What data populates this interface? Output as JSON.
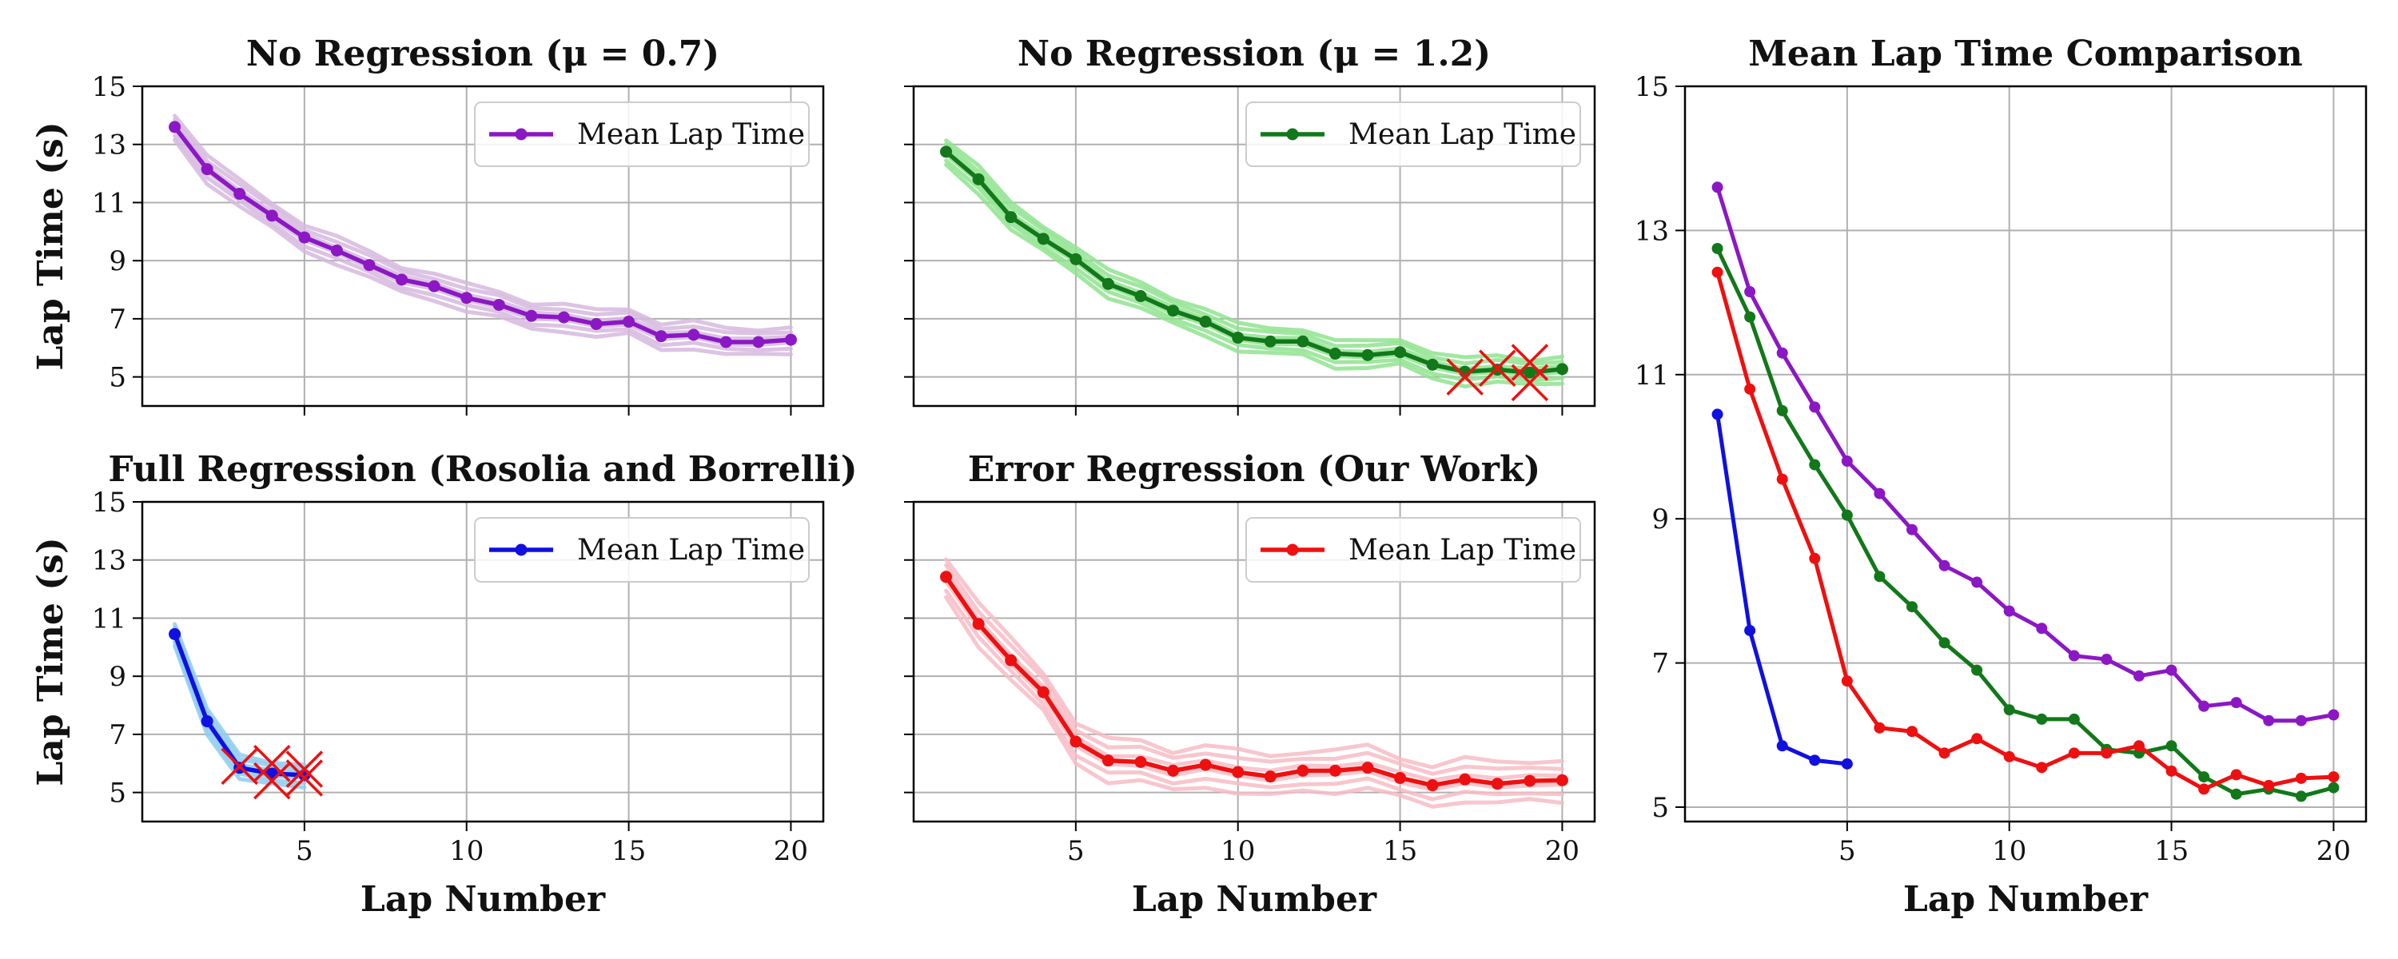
{
  "colors": {
    "purple": "#8b18c4",
    "purple_light": "#d6b8de",
    "green": "#12781a",
    "green_light": "#8fe38f",
    "blue": "#1010e0",
    "blue_light": "#8ecbee",
    "red": "#ee1010",
    "red_light": "#f7bcc6",
    "grid": "#b0b0b0",
    "cross": "#ee1010"
  },
  "chart_data": [
    {
      "id": "p1",
      "type": "line",
      "title": "No Regression (μ = 0.7)",
      "xlabel": "",
      "ylabel": "Lap Time (s)",
      "xlim": [
        0,
        21
      ],
      "ylim": [
        4,
        15
      ],
      "xticks": [
        5,
        10,
        15,
        20
      ],
      "yticks": [
        5,
        7,
        9,
        11,
        13,
        15
      ],
      "show_xticklabels": false,
      "legend": "Mean Lap Time",
      "legend_position": "top-right",
      "color": "purple",
      "band_color": "purple_light",
      "x": [
        1,
        2,
        3,
        4,
        5,
        6,
        7,
        8,
        9,
        10,
        11,
        12,
        13,
        14,
        15,
        16,
        17,
        18,
        19,
        20
      ],
      "values": [
        13.6,
        12.15,
        11.3,
        10.55,
        9.8,
        9.35,
        8.85,
        8.35,
        8.12,
        7.72,
        7.48,
        7.1,
        7.05,
        6.82,
        6.9,
        6.4,
        6.45,
        6.2,
        6.2,
        6.28
      ],
      "band": 0.45,
      "failures": []
    },
    {
      "id": "p2",
      "type": "line",
      "title": "No Regression (μ = 1.2)",
      "xlabel": "",
      "ylabel": "",
      "xlim": [
        0,
        21
      ],
      "ylim": [
        4,
        15
      ],
      "xticks": [
        5,
        10,
        15,
        20
      ],
      "yticks": [
        5,
        7,
        9,
        11,
        13,
        15
      ],
      "show_xticklabels": false,
      "show_yticklabels": false,
      "legend": "Mean Lap Time",
      "legend_position": "top-right",
      "color": "green",
      "band_color": "green_light",
      "x": [
        1,
        2,
        3,
        4,
        5,
        6,
        7,
        8,
        9,
        10,
        11,
        12,
        13,
        14,
        15,
        16,
        17,
        18,
        19,
        20
      ],
      "values": [
        12.75,
        11.8,
        10.5,
        9.75,
        9.05,
        8.2,
        7.78,
        7.28,
        6.9,
        6.35,
        6.22,
        6.22,
        5.8,
        5.75,
        5.85,
        5.42,
        5.18,
        5.25,
        5.15,
        5.27
      ],
      "band": 0.45,
      "failures": [
        [
          17,
          5.0
        ],
        [
          18,
          5.3
        ],
        [
          19,
          5.5
        ],
        [
          19,
          4.8
        ]
      ]
    },
    {
      "id": "p3",
      "type": "line",
      "title": "Full Regression (Rosolia and Borrelli)",
      "xlabel": "Lap Number",
      "ylabel": "Lap Time (s)",
      "xlim": [
        0,
        21
      ],
      "ylim": [
        4,
        15
      ],
      "xticks": [
        5,
        10,
        15,
        20
      ],
      "yticks": [
        5,
        7,
        9,
        11,
        13,
        15
      ],
      "legend": "Mean Lap Time",
      "legend_position": "top-right",
      "color": "blue",
      "band_color": "blue_light",
      "x": [
        1,
        2,
        3,
        4,
        5
      ],
      "values": [
        10.45,
        7.45,
        5.85,
        5.65,
        5.6
      ],
      "band": 0.4,
      "failures": [
        [
          3,
          5.9
        ],
        [
          4,
          6.0
        ],
        [
          4,
          5.4
        ],
        [
          5,
          5.8
        ],
        [
          5,
          5.5
        ]
      ]
    },
    {
      "id": "p4",
      "type": "line",
      "title": "Error Regression (Our Work)",
      "xlabel": "Lap Number",
      "ylabel": "",
      "xlim": [
        0,
        21
      ],
      "ylim": [
        4,
        15
      ],
      "xticks": [
        5,
        10,
        15,
        20
      ],
      "yticks": [
        5,
        7,
        9,
        11,
        13,
        15
      ],
      "show_yticklabels": false,
      "legend": "Mean Lap Time",
      "legend_position": "top-right",
      "color": "red",
      "band_color": "red_light",
      "x": [
        1,
        2,
        3,
        4,
        5,
        6,
        7,
        8,
        9,
        10,
        11,
        12,
        13,
        14,
        15,
        16,
        17,
        18,
        19,
        20
      ],
      "values": [
        12.42,
        10.8,
        9.55,
        8.45,
        6.75,
        6.1,
        6.05,
        5.75,
        5.95,
        5.7,
        5.55,
        5.75,
        5.75,
        5.85,
        5.5,
        5.25,
        5.45,
        5.3,
        5.4,
        5.42
      ],
      "band": 0.7,
      "failures": []
    },
    {
      "id": "p5",
      "type": "line",
      "title": "Mean Lap Time Comparison",
      "xlabel": "Lap Number",
      "ylabel": "",
      "xlim": [
        0,
        21
      ],
      "ylim": [
        4.8,
        15
      ],
      "xticks": [
        5,
        10,
        15,
        20
      ],
      "yticks": [
        5,
        7,
        9,
        11,
        13,
        15
      ],
      "series": [
        {
          "name": "No Regression (μ = 0.7)",
          "color": "purple",
          "x": [
            1,
            2,
            3,
            4,
            5,
            6,
            7,
            8,
            9,
            10,
            11,
            12,
            13,
            14,
            15,
            16,
            17,
            18,
            19,
            20
          ],
          "values": [
            13.6,
            12.15,
            11.3,
            10.55,
            9.8,
            9.35,
            8.85,
            8.35,
            8.12,
            7.72,
            7.48,
            7.1,
            7.05,
            6.82,
            6.9,
            6.4,
            6.45,
            6.2,
            6.2,
            6.28
          ]
        },
        {
          "name": "No Regression (μ = 1.2)",
          "color": "green",
          "x": [
            1,
            2,
            3,
            4,
            5,
            6,
            7,
            8,
            9,
            10,
            11,
            12,
            13,
            14,
            15,
            16,
            17,
            18,
            19,
            20
          ],
          "values": [
            12.75,
            11.8,
            10.5,
            9.75,
            9.05,
            8.2,
            7.78,
            7.28,
            6.9,
            6.35,
            6.22,
            6.22,
            5.8,
            5.75,
            5.85,
            5.42,
            5.18,
            5.25,
            5.15,
            5.27
          ]
        },
        {
          "name": "Error Regression (Our Work)",
          "color": "red",
          "x": [
            1,
            2,
            3,
            4,
            5,
            6,
            7,
            8,
            9,
            10,
            11,
            12,
            13,
            14,
            15,
            16,
            17,
            18,
            19,
            20
          ],
          "values": [
            12.42,
            10.8,
            9.55,
            8.45,
            6.75,
            6.1,
            6.05,
            5.75,
            5.95,
            5.7,
            5.55,
            5.75,
            5.75,
            5.85,
            5.5,
            5.25,
            5.45,
            5.3,
            5.4,
            5.42
          ]
        },
        {
          "name": "Full Regression (Rosolia and Borrelli)",
          "color": "blue",
          "x": [
            1,
            2,
            3,
            4,
            5
          ],
          "values": [
            10.45,
            7.45,
            5.85,
            5.65,
            5.6
          ]
        }
      ]
    }
  ]
}
